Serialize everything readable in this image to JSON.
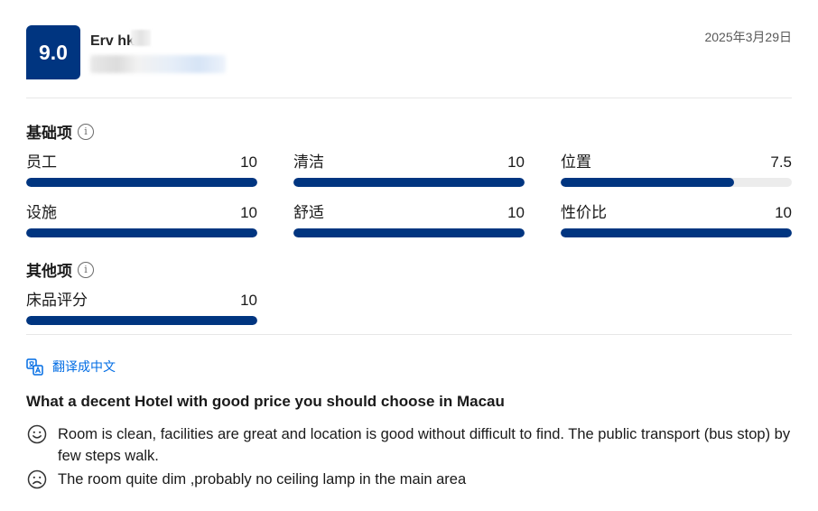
{
  "review": {
    "score": "9.0",
    "reviewer_name": "Erv  hk",
    "date": "2025年3月29日",
    "title": "What a decent Hotel with good price you should choose in Macau",
    "positive": "Room is clean, facilities are great and location is good without difficult to find. The public transport (bus stop) by few steps walk.",
    "negative": "The room quite dim ,probably no ceiling lamp in the main area"
  },
  "basic": {
    "title": "基础项",
    "items": [
      {
        "label": "员工",
        "score": "10",
        "fraction": 1.0
      },
      {
        "label": "清洁",
        "score": "10",
        "fraction": 1.0
      },
      {
        "label": "位置",
        "score": "7.5",
        "fraction": 0.75
      },
      {
        "label": "设施",
        "score": "10",
        "fraction": 1.0
      },
      {
        "label": "舒适",
        "score": "10",
        "fraction": 1.0
      },
      {
        "label": "性价比",
        "score": "10",
        "fraction": 1.0
      }
    ]
  },
  "other": {
    "title": "其他项",
    "items": [
      {
        "label": "床品评分",
        "score": "10",
        "fraction": 1.0
      }
    ]
  },
  "translate_label": "翻译成中文",
  "icons": {
    "info": "info-icon",
    "translate": "translate-icon",
    "positive": "smile-icon",
    "negative": "frown-icon"
  },
  "colors": {
    "brand": "#003580",
    "link": "#006ce4",
    "track": "#ececec"
  }
}
